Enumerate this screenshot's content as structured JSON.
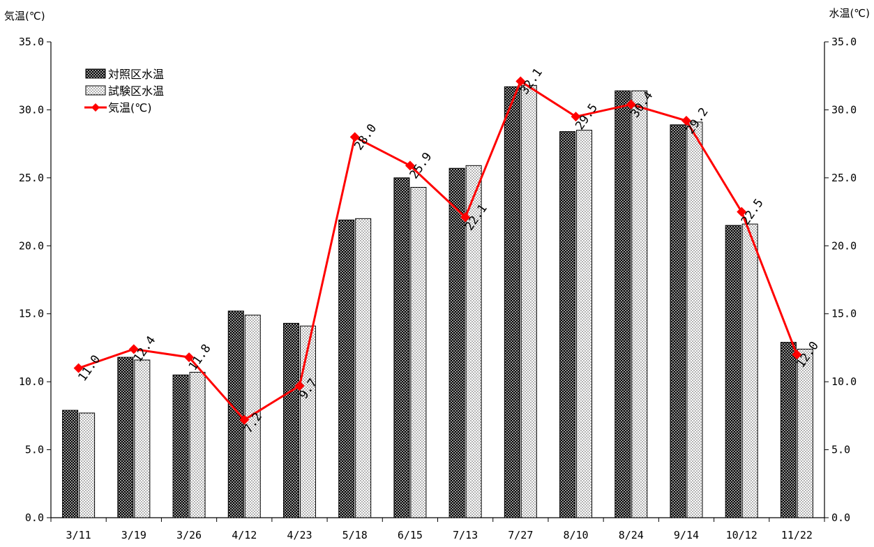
{
  "chart_data": {
    "type": "bar",
    "title": "",
    "ylabel_left": "気温(℃)",
    "ylabel_right": "水温(℃)",
    "categories": [
      "3/11",
      "3/19",
      "3/26",
      "4/12",
      "4/23",
      "5/18",
      "6/15",
      "7/13",
      "7/27",
      "8/10",
      "8/24",
      "9/14",
      "10/12",
      "11/22"
    ],
    "ylim": [
      0,
      35
    ],
    "yticks": [
      "0.0",
      "5.0",
      "10.0",
      "15.0",
      "20.0",
      "25.0",
      "30.0",
      "35.0"
    ],
    "ytick_values": [
      0,
      5,
      10,
      15,
      20,
      25,
      30,
      35
    ],
    "legend_position": "top-left",
    "series": [
      {
        "name": "対照区水温",
        "kind": "bar",
        "pattern": "dark-dots",
        "values": [
          7.9,
          11.8,
          10.5,
          15.2,
          14.3,
          21.9,
          25.0,
          25.7,
          31.7,
          28.4,
          31.4,
          28.9,
          21.5,
          12.9
        ]
      },
      {
        "name": "試験区水温",
        "kind": "bar",
        "pattern": "light-dots",
        "values": [
          7.7,
          11.6,
          10.7,
          14.9,
          14.1,
          22.0,
          24.3,
          25.9,
          31.8,
          28.5,
          31.4,
          29.1,
          21.6,
          12.4
        ]
      },
      {
        "name": "気温(℃)",
        "kind": "line",
        "color": "#ff0000",
        "values": [
          11.0,
          12.4,
          11.8,
          7.2,
          9.7,
          28.0,
          25.9,
          22.1,
          32.1,
          29.5,
          30.4,
          29.2,
          22.5,
          12.0
        ],
        "labels": [
          "11.0",
          "12.4",
          "11.8",
          "7.2",
          "9.7",
          "28.0",
          "25.9",
          "22.1",
          "32.1",
          "29.5",
          "30.4",
          "29.2",
          "22.5",
          "12.0"
        ]
      }
    ]
  }
}
